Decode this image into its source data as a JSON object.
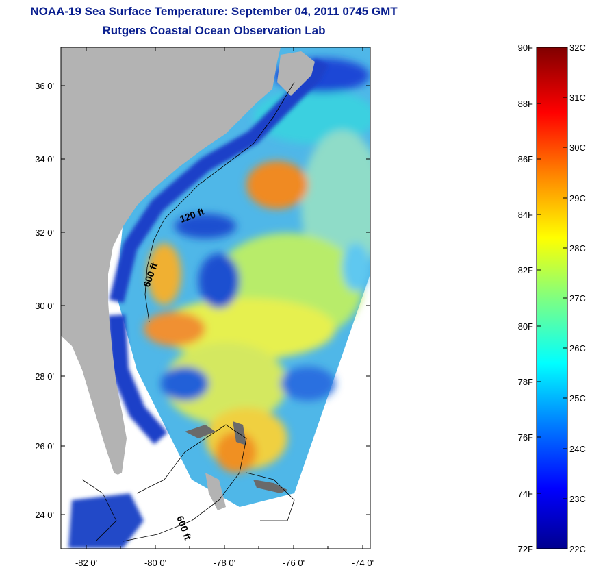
{
  "title": "NOAA-19 Sea Surface Temperature:  September 04, 2011 0745 GMT",
  "subtitle": "Rutgers Coastal Ocean Observation Lab",
  "map": {
    "lon_ticks": [
      "-82 0'",
      "-80 0'",
      "-78 0'",
      "-76 0'",
      "-74 0'"
    ],
    "lat_ticks": [
      "36 0'",
      "34 0'",
      "32 0'",
      "30 0'",
      "28 0'",
      "26 0'",
      "24 0'"
    ],
    "contours": [
      "120 ft",
      "600 ft",
      "600 ft"
    ],
    "colors": {
      "land": "#b3b3b3",
      "nodata": "#ffffff"
    }
  },
  "colorbar": {
    "fahrenheit": [
      "90F",
      "88F",
      "86F",
      "84F",
      "82F",
      "80F",
      "78F",
      "76F",
      "74F",
      "72F"
    ],
    "celsius": [
      "32C",
      "31C",
      "30C",
      "29C",
      "28C",
      "27C",
      "26C",
      "25C",
      "24C",
      "23C",
      "22C"
    ],
    "colors": [
      "#00008f",
      "#0000ff",
      "#0080ff",
      "#00ffff",
      "#80ff80",
      "#ffff00",
      "#ff8000",
      "#ff0000",
      "#800000"
    ]
  }
}
